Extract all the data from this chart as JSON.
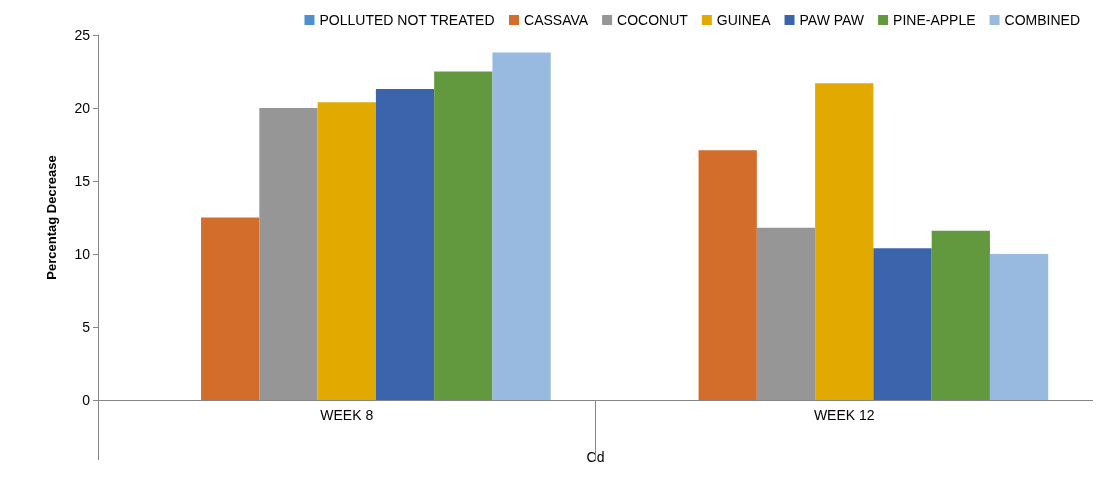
{
  "chart_data": {
    "type": "bar",
    "xlabel": "Cd",
    "ylabel": "Percentag Decrease",
    "categories": [
      "WEEK 8",
      "WEEK 12"
    ],
    "series": [
      {
        "name": "POLLUTED NOT TREATED",
        "color": "#4e8fce",
        "values": [
          0,
          0
        ]
      },
      {
        "name": "CASSAVA",
        "color": "#d36d2b",
        "values": [
          12.5,
          17.1
        ]
      },
      {
        "name": "COCONUT",
        "color": "#969696",
        "values": [
          20.0,
          11.8
        ]
      },
      {
        "name": "GUINEA",
        "color": "#e2aa00",
        "values": [
          20.4,
          21.7
        ]
      },
      {
        "name": "PAW PAW",
        "color": "#3b64ad",
        "values": [
          21.3,
          10.4
        ]
      },
      {
        "name": "PINE-APPLE",
        "color": "#62993e",
        "values": [
          22.5,
          11.6
        ]
      },
      {
        "name": "COMBINED",
        "color": "#98bae0",
        "values": [
          23.8,
          10.0
        ]
      }
    ],
    "ylim": [
      0,
      25
    ],
    "yticks": [
      0,
      5,
      10,
      15,
      20,
      25
    ],
    "grid": false,
    "legend": "top"
  }
}
